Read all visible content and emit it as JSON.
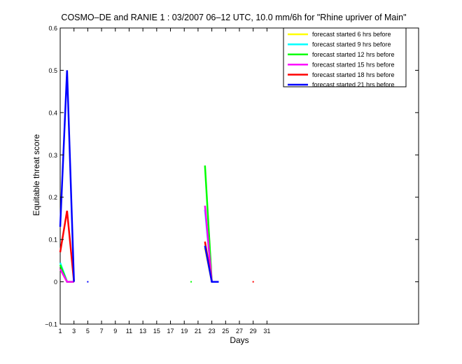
{
  "chart_data": {
    "type": "line",
    "title": "COSMO–DE and RANIE 1 : 03/2007 06–12 UTC, 10.0 mm/6h for \"Rhine upriver of Main\"",
    "xlabel": "Days",
    "ylabel": "Equitable threat score",
    "xlim": [
      1,
      53
    ],
    "ylim": [
      -0.1,
      0.6
    ],
    "xticks": [
      1,
      3,
      5,
      7,
      9,
      11,
      13,
      15,
      17,
      19,
      21,
      23,
      25,
      27,
      29,
      31
    ],
    "yticks": [
      -0.1,
      0,
      0.1,
      0.2,
      0.3,
      0.4,
      0.5,
      0.6
    ],
    "ytick_labels": [
      "−0.1",
      "0",
      "0.1",
      "0.2",
      "0.3",
      "0.4",
      "0.5",
      "0.6"
    ],
    "grid": false,
    "legend_position": "top-right",
    "series": [
      {
        "name": "forecast started 6 hrs before",
        "color": "#ffff00",
        "segments": [
          [
            [
              1,
              0.03
            ],
            [
              2,
              0
            ],
            [
              3,
              0
            ]
          ],
          [
            [
              22,
              0.08
            ],
            [
              23,
              0
            ]
          ]
        ]
      },
      {
        "name": "forecast started 9 hrs before",
        "color": "#00ffff",
        "segments": [
          [
            [
              1,
              0.045
            ],
            [
              2,
              0
            ],
            [
              3,
              0
            ]
          ],
          [
            [
              22,
              0.17
            ],
            [
              23,
              0
            ]
          ]
        ]
      },
      {
        "name": "forecast started 12 hrs before",
        "color": "#00ff00",
        "segments": [
          [
            [
              1,
              0.04
            ],
            [
              2,
              0
            ],
            [
              3,
              0
            ]
          ],
          [
            [
              20,
              0
            ]
          ],
          [
            [
              22,
              0.275
            ],
            [
              23,
              0
            ]
          ]
        ]
      },
      {
        "name": "forecast started 15 hrs before",
        "color": "#ff00ff",
        "segments": [
          [
            [
              1,
              0.03
            ],
            [
              2,
              0
            ],
            [
              3,
              0
            ]
          ],
          [
            [
              22,
              0.18
            ],
            [
              23,
              0
            ]
          ]
        ]
      },
      {
        "name": "forecast started 18 hrs before",
        "color": "#ff0000",
        "segments": [
          [
            [
              1,
              0.07
            ],
            [
              2,
              0.168
            ],
            [
              3,
              0
            ]
          ],
          [
            [
              22,
              0.095
            ],
            [
              23,
              0
            ]
          ],
          [
            [
              29,
              0
            ]
          ]
        ]
      },
      {
        "name": "forecast started 21 hrs before",
        "color": "#0000ff",
        "segments": [
          [
            [
              1,
              0.13
            ],
            [
              2,
              0.5
            ],
            [
              3,
              0
            ]
          ],
          [
            [
              5,
              0
            ]
          ],
          [
            [
              22,
              0.085
            ],
            [
              23,
              0
            ],
            [
              24,
              0
            ]
          ]
        ]
      }
    ]
  }
}
